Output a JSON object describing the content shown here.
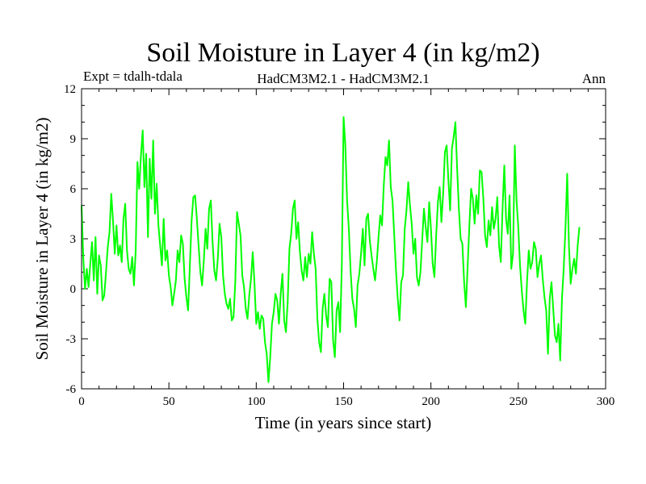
{
  "chart_data": {
    "type": "line",
    "title": "Soil Moisture in Layer 4 (in kg/m2)",
    "subtitle_left": "Expt = tdalh-tdala",
    "subtitle_center": "HadCM3M2.1 - HadCM3M2.1",
    "subtitle_right": "Ann",
    "xlabel": "Time (in years since start)",
    "ylabel": "Soil Moisture in Layer 4 (in kg/m2)",
    "xlim": [
      0,
      300
    ],
    "ylim": [
      -6,
      12
    ],
    "xticks": [
      0,
      50,
      100,
      150,
      200,
      250,
      300
    ],
    "yticks": [
      -6,
      -3,
      0,
      3,
      6,
      9,
      12
    ],
    "line_color": "#00ff00",
    "series": [
      {
        "name": "tdalh-tdala",
        "x_start": 0,
        "x_step": 1,
        "values": [
          5.0,
          1.8,
          0.0,
          1.2,
          0.1,
          1.5,
          2.8,
          0.5,
          3.1,
          -0.3,
          2.0,
          1.4,
          -0.7,
          -0.4,
          1.0,
          2.5,
          3.4,
          5.7,
          4.1,
          2.1,
          3.8,
          2.0,
          2.6,
          1.6,
          4.2,
          5.1,
          2.3,
          1.2,
          0.9,
          1.9,
          0.2,
          2.3,
          7.6,
          6.0,
          8.0,
          9.5,
          6.1,
          8.1,
          3.1,
          7.8,
          5.4,
          8.9,
          4.5,
          6.3,
          3.8,
          2.6,
          1.4,
          4.2,
          1.7,
          2.3,
          0.8,
          0.1,
          -1.0,
          -0.3,
          0.5,
          2.3,
          1.6,
          3.2,
          2.7,
          0.6,
          -0.5,
          -1.3,
          1.4,
          4.1,
          5.5,
          5.6,
          4.2,
          2.6,
          1.0,
          0.2,
          1.7,
          3.6,
          2.4,
          4.8,
          5.3,
          2.8,
          1.1,
          0.5,
          1.8,
          3.9,
          3.1,
          0.8,
          -0.3,
          -0.9,
          -1.2,
          -0.6,
          -1.9,
          -1.7,
          0.4,
          4.6,
          3.9,
          3.2,
          0.8,
          0.1,
          -1.2,
          -1.8,
          -0.4,
          0.6,
          2.2,
          0.3,
          -2.1,
          -1.4,
          -2.4,
          -1.6,
          -1.8,
          -3.2,
          -3.9,
          -5.6,
          -4.1,
          -2.1,
          -1.4,
          -0.3,
          -0.7,
          -2.1,
          -0.3,
          0.9,
          -1.9,
          -2.6,
          -0.8,
          2.4,
          3.3,
          4.8,
          5.3,
          3.0,
          4.0,
          2.2,
          1.1,
          0.5,
          1.9,
          0.7,
          2.1,
          1.5,
          3.4,
          2.1,
          1.2,
          -1.8,
          -3.2,
          -3.8,
          -1.2,
          -0.3,
          -1.6,
          -2.3,
          0.6,
          0.4,
          -3.1,
          -4.1,
          -1.3,
          -0.8,
          -2.6,
          1.5,
          10.3,
          8.6,
          5.3,
          3.6,
          1.1,
          -0.6,
          -1.2,
          -2.3,
          0.2,
          0.9,
          2.1,
          3.6,
          1.4,
          4.2,
          4.5,
          2.9,
          2.0,
          1.2,
          0.5,
          1.6,
          3.1,
          4.4,
          3.8,
          6.2,
          7.9,
          7.4,
          8.9,
          6.1,
          5.3,
          3.2,
          1.1,
          -0.6,
          -1.9,
          0.4,
          0.8,
          3.6,
          4.7,
          6.4,
          5.0,
          3.9,
          2.1,
          3.0,
          0.7,
          0.2,
          1.0,
          2.9,
          4.8,
          3.7,
          2.8,
          5.2,
          3.6,
          1.5,
          0.7,
          3.2,
          5.2,
          6.1,
          4.0,
          5.7,
          8.2,
          8.6,
          6.5,
          4.7,
          8.4,
          9.1,
          10.0,
          7.2,
          4.8,
          3.0,
          2.7,
          0.4,
          -1.1,
          1.3,
          3.8,
          6.0,
          5.4,
          3.9,
          5.6,
          4.5,
          7.1,
          7.0,
          5.4,
          3.2,
          2.5,
          4.1,
          3.2,
          4.9,
          3.6,
          4.2,
          5.5,
          2.6,
          1.6,
          4.8,
          7.4,
          4.2,
          3.3,
          5.6,
          1.2,
          2.1,
          8.6,
          5.3,
          3.7,
          1.4,
          -0.1,
          -1.3,
          -2.1,
          0.4,
          2.3,
          1.2,
          1.6,
          2.8,
          2.4,
          0.7,
          1.5,
          2.0,
          0.6,
          -0.5,
          -1.3,
          -3.9,
          -0.6,
          0.4,
          -1.2,
          -2.8,
          -3.2,
          -2.1,
          -4.3,
          -0.6,
          1.2,
          3.6,
          6.9,
          2.6,
          0.3,
          1.2,
          1.8,
          0.9,
          2.6,
          3.7
        ]
      }
    ]
  }
}
